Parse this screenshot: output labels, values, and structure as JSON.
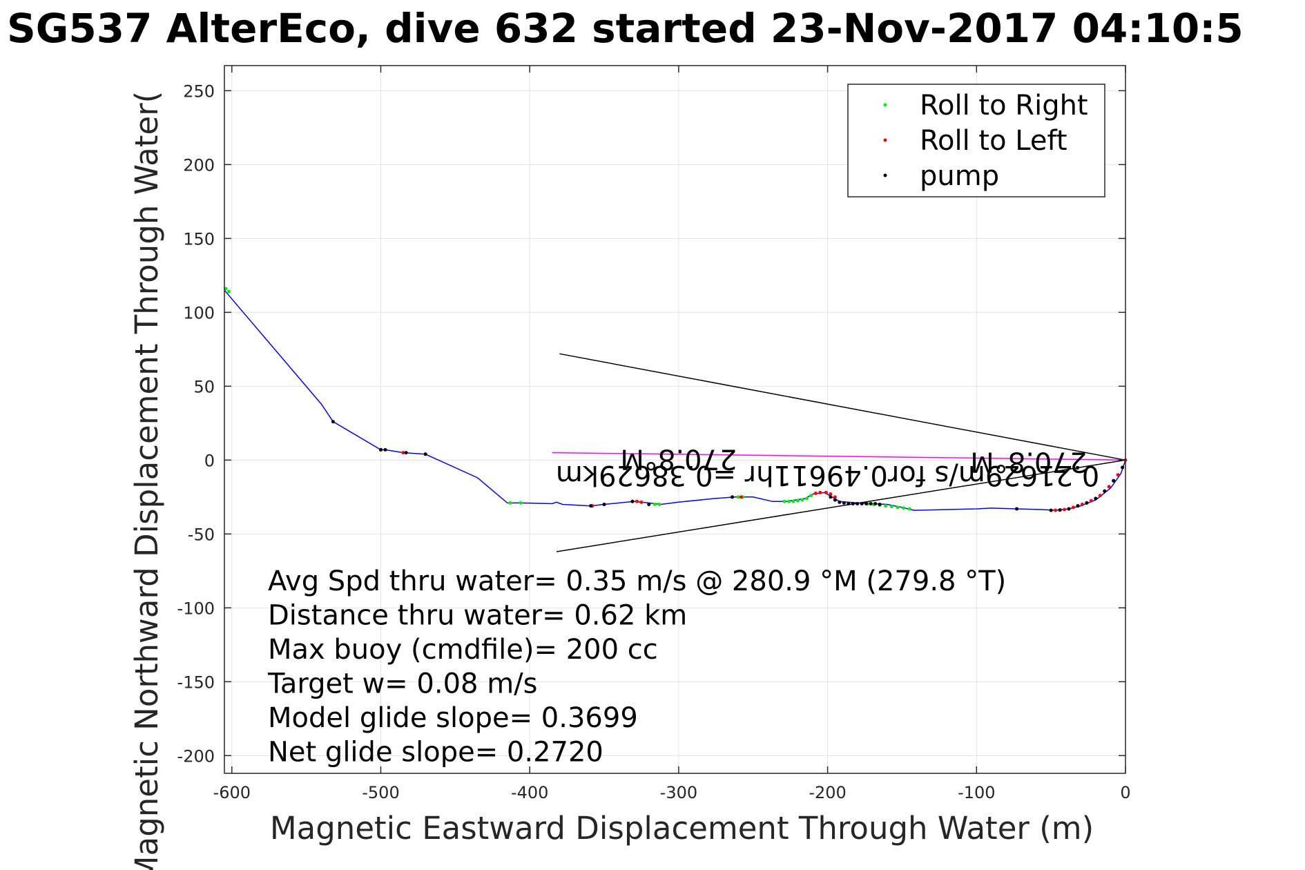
{
  "chart_data": {
    "type": "scatter",
    "title": "SG537 AlterEco, dive 632 started 23-Nov-2017 04:10:5",
    "xlabel": "Magnetic Eastward Displacement Through Water (m)",
    "ylabel": "Magnetic Northward Displacement Through Water(",
    "xlim": [
      -605,
      0
    ],
    "ylim": [
      -212,
      267
    ],
    "xticks": [
      -600,
      -500,
      -400,
      -300,
      -200,
      -100,
      0
    ],
    "yticks": [
      250,
      200,
      150,
      100,
      50,
      0,
      -50,
      -100,
      -150,
      -200
    ],
    "grid": true,
    "legend_position": "top-right",
    "legend": [
      {
        "label": "Roll to Right",
        "color": "#00ee00"
      },
      {
        "label": "Roll to Left",
        "color": "#ff0000"
      },
      {
        "label": "pump",
        "color": "#000000"
      }
    ],
    "track": {
      "color": "#0000ff",
      "x": [
        -605,
        -540,
        -532,
        -500,
        -497,
        -485,
        -470,
        -435,
        -415,
        -405,
        -385,
        -382,
        -378,
        -359,
        -350,
        -330,
        -320,
        -312,
        -300,
        -276,
        -262,
        -250,
        -237,
        -228,
        -215,
        -210,
        -202,
        -192,
        -180,
        -160,
        -150,
        -142,
        -100,
        -90,
        -73,
        -56,
        -47,
        -38,
        -30,
        -20,
        -10,
        -3,
        0
      ],
      "y": [
        115,
        38,
        26,
        7,
        7,
        5,
        4,
        -12,
        -29,
        -29,
        -29.5,
        -28.5,
        -30,
        -31,
        -30,
        -28,
        -29,
        -30,
        -28.5,
        -26,
        -25,
        -25,
        -28,
        -28,
        -26,
        -23,
        -22,
        -28,
        -29,
        -30,
        -32,
        -34,
        -33,
        -32.5,
        -33,
        -33.5,
        -34,
        -33,
        -31,
        -27,
        -19,
        -9,
        0
      ]
    },
    "roll_right_points": {
      "x": [
        -604,
        -602,
        -413,
        -406,
        -320,
        -316,
        -313,
        -260,
        -257,
        -229,
        -226,
        -223,
        -220,
        -217,
        -214,
        -211,
        -173,
        -169,
        -165,
        -161,
        -157,
        -153,
        -149,
        -145
      ],
      "y": [
        116,
        114,
        -29,
        -29,
        -30,
        -30,
        -30,
        -25,
        -25,
        -28,
        -28,
        -28,
        -27.5,
        -27,
        -26,
        -24,
        -29.5,
        -30,
        -30.5,
        -31,
        -31.5,
        -32,
        -32.5,
        -33
      ]
    },
    "roll_left_points": {
      "x": [
        -500,
        -485,
        -470,
        -358,
        -350,
        -331,
        -328,
        -325,
        -264,
        -258,
        -208,
        -205,
        -201,
        -198,
        -195,
        -73,
        -50,
        -47,
        -44,
        -41,
        -38,
        -35,
        -32,
        -29,
        -26,
        -23,
        -20,
        -17,
        -14,
        -11,
        -8,
        -5,
        -2,
        0
      ],
      "y": [
        7,
        5,
        4,
        -31,
        -30,
        -28,
        -28,
        -28.5,
        -25,
        -25,
        -22.5,
        -22,
        -22,
        -23,
        -25,
        -33,
        -34,
        -34,
        -33.8,
        -33.5,
        -33,
        -32,
        -31,
        -30,
        -29,
        -27.5,
        -26,
        -24,
        -21,
        -18,
        -14,
        -10,
        -5,
        0
      ]
    },
    "pump_points": {
      "x": [
        -532,
        -500,
        -497,
        -483,
        -470,
        -359,
        -350,
        -331,
        -320,
        -264,
        -198,
        -195,
        -192,
        -189,
        -186,
        -183,
        -180,
        -177,
        -174,
        -171,
        -168,
        -165,
        -73,
        -50,
        -44,
        -38,
        -32,
        -26,
        -20,
        -14,
        -8,
        -2
      ],
      "y": [
        26,
        7,
        7,
        5,
        4,
        -31,
        -30,
        -28,
        -30,
        -25,
        -25,
        -27,
        -28.5,
        -29,
        -29.5,
        -29.5,
        -29.5,
        -29.5,
        -29.5,
        -29.5,
        -29.5,
        -30,
        -33,
        -34,
        -33.8,
        -33,
        -31,
        -29,
        -26,
        -21,
        -14,
        -5
      ]
    },
    "heading_lines": [
      {
        "x": [
          0,
          -380
        ],
        "y": [
          0,
          72
        ],
        "color": "#000000"
      },
      {
        "x": [
          0,
          -382
        ],
        "y": [
          0,
          -62
        ],
        "color": "#000000"
      },
      {
        "x": [
          0,
          -385
        ],
        "y": [
          0,
          5
        ],
        "color": "#ff00ff"
      }
    ],
    "annotations_flipped": [
      {
        "text": "270.8°M",
        "x": -300,
        "y": 7
      },
      {
        "text": "270.8°M",
        "x": -65,
        "y": 5
      },
      {
        "text": "0.21629m/s for0.49611hr =0.38629km",
        "x": -200,
        "y": -4
      }
    ],
    "stats": [
      "Avg Spd thru water=  0.35 m/s @ 280.9 °M (279.8 °T)",
      "Distance thru water=  0.62 km",
      "Max buoy (cmdfile)= 200 cc",
      "Target w= 0.08 m/s",
      "Model glide slope= 0.3699",
      "Net glide slope= 0.2720"
    ]
  }
}
